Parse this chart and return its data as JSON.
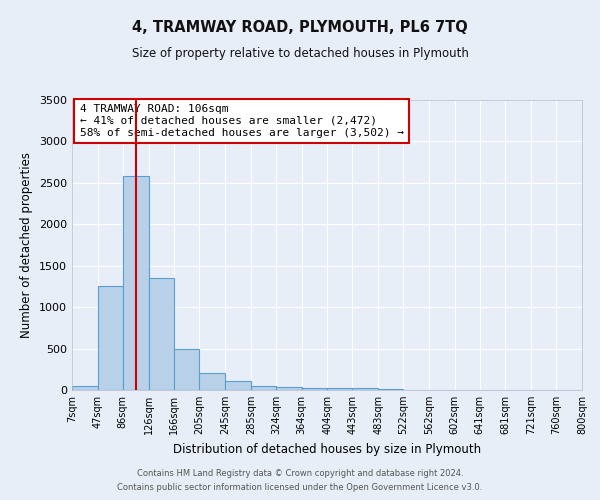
{
  "title": "4, TRAMWAY ROAD, PLYMOUTH, PL6 7TQ",
  "subtitle": "Size of property relative to detached houses in Plymouth",
  "xlabel": "Distribution of detached houses by size in Plymouth",
  "ylabel": "Number of detached properties",
  "bin_labels": [
    "7sqm",
    "47sqm",
    "86sqm",
    "126sqm",
    "166sqm",
    "205sqm",
    "245sqm",
    "285sqm",
    "324sqm",
    "364sqm",
    "404sqm",
    "443sqm",
    "483sqm",
    "522sqm",
    "562sqm",
    "602sqm",
    "641sqm",
    "681sqm",
    "721sqm",
    "760sqm",
    "800sqm"
  ],
  "bin_edges": [
    7,
    47,
    86,
    126,
    166,
    205,
    245,
    285,
    324,
    364,
    404,
    443,
    483,
    522,
    562,
    602,
    641,
    681,
    721,
    760,
    800
  ],
  "bar_heights": [
    50,
    1250,
    2580,
    1350,
    500,
    200,
    110,
    50,
    40,
    20,
    20,
    20,
    15,
    5,
    5,
    3,
    3,
    3,
    3,
    3
  ],
  "bar_color": "#b8d0e8",
  "bar_edge_color": "#5a9fd4",
  "bar_edge_width": 0.8,
  "red_line_x": 106,
  "red_line_color": "#cc0000",
  "ylim": [
    0,
    3500
  ],
  "yticks": [
    0,
    500,
    1000,
    1500,
    2000,
    2500,
    3000,
    3500
  ],
  "annotation_title": "4 TRAMWAY ROAD: 106sqm",
  "annotation_line1": "← 41% of detached houses are smaller (2,472)",
  "annotation_line2": "58% of semi-detached houses are larger (3,502) →",
  "annotation_box_color": "#cc0000",
  "background_color": "#e8eef8",
  "plot_bg_color": "#e8eef8",
  "footer1": "Contains HM Land Registry data © Crown copyright and database right 2024.",
  "footer2": "Contains public sector information licensed under the Open Government Licence v3.0."
}
